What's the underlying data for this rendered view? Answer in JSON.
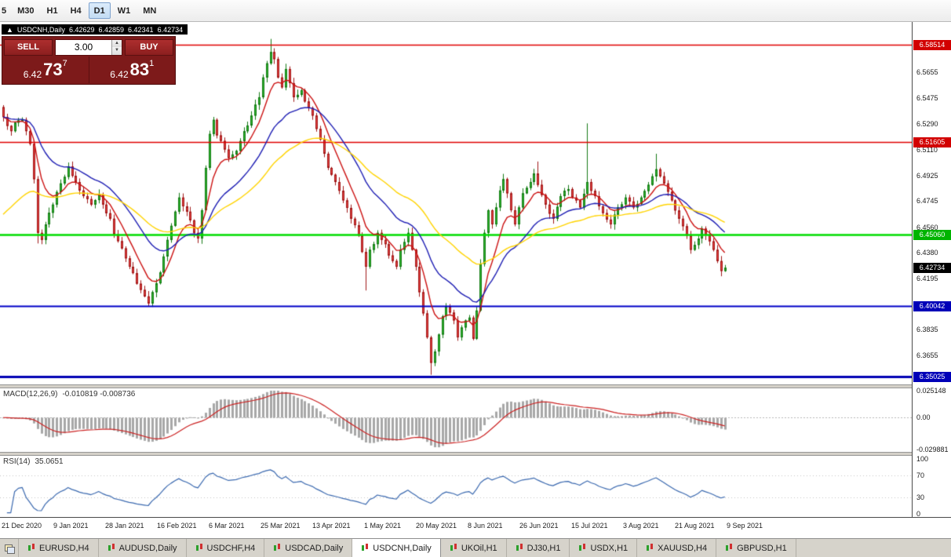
{
  "toolbar": {
    "timeframes": [
      {
        "label": "5",
        "active": false,
        "partial": true
      },
      {
        "label": "M30",
        "active": false
      },
      {
        "label": "H1",
        "active": false
      },
      {
        "label": "H4",
        "active": false
      },
      {
        "label": "D1",
        "active": true
      },
      {
        "label": "W1",
        "active": false
      },
      {
        "label": "MN",
        "active": false
      }
    ]
  },
  "chart": {
    "ohlc_strip": {
      "collapse_icon": "▲",
      "symbol": "USDCNH,Daily",
      "open": "6.42629",
      "high": "6.42859",
      "low": "6.42341",
      "close": "6.42734"
    },
    "trade_panel": {
      "sell_label": "SELL",
      "buy_label": "BUY",
      "lot_size": "3.00",
      "spin_up": "▲",
      "spin_down": "▼",
      "sell_price": {
        "prefix": "6.42",
        "big": "73",
        "sup": "7"
      },
      "buy_price": {
        "prefix": "6.42",
        "big": "83",
        "sup": "1"
      }
    },
    "price_axis": {
      "ticks": [
        {
          "label": "6.5655",
          "value": 6.5655
        },
        {
          "label": "6.5475",
          "value": 6.5475
        },
        {
          "label": "6.5290",
          "value": 6.529
        },
        {
          "label": "6.5110",
          "value": 6.511
        },
        {
          "label": "6.4925",
          "value": 6.4925
        },
        {
          "label": "6.4745",
          "value": 6.4745
        },
        {
          "label": "6.4560",
          "value": 6.456
        },
        {
          "label": "6.4380",
          "value": 6.438
        },
        {
          "label": "6.4195",
          "value": 6.4195
        },
        {
          "label": "6.3835",
          "value": 6.3835
        },
        {
          "label": "6.3655",
          "value": 6.3655
        }
      ],
      "badges": [
        {
          "label": "6.58514",
          "value": 6.58514,
          "color": "#d20000"
        },
        {
          "label": "6.51605",
          "value": 6.51605,
          "color": "#d20000"
        },
        {
          "label": "6.45060",
          "value": 6.4506,
          "color": "#00b400"
        },
        {
          "label": "6.42734",
          "value": 6.42734,
          "color": "#000000",
          "current": true
        },
        {
          "label": "6.40042",
          "value": 6.40042,
          "color": "#0000b8"
        },
        {
          "label": "6.35025",
          "value": 6.35025,
          "color": "#0000b8"
        }
      ]
    }
  },
  "macd": {
    "title": "MACD(12,26,9)",
    "values": "-0.010819 -0.008736",
    "axis": [
      {
        "label": "0.025148",
        "value": 0.025148
      },
      {
        "label": "0.00",
        "value": 0
      },
      {
        "label": "-0.029881",
        "value": -0.029881
      }
    ],
    "scale_range": [
      -0.029881,
      0.025148
    ],
    "histogram_color": "#a8a8a8",
    "signal_color": "#cc2222"
  },
  "rsi": {
    "title": "RSI(14)",
    "value": "35.0651",
    "axis": [
      {
        "label": "100",
        "value": 100
      },
      {
        "label": "70",
        "value": 70
      },
      {
        "label": "30",
        "value": 30
      },
      {
        "label": "0",
        "value": 0
      }
    ],
    "levels": [
      70,
      30
    ],
    "line_color": "#3c6ab0"
  },
  "date_axis": {
    "labels": [
      "21 Dec 2020",
      "9 Jan 2021",
      "28 Jan 2021",
      "16 Feb 2021",
      "6 Mar 2021",
      "25 Mar 2021",
      "13 Apr 2021",
      "1 May 2021",
      "20 May 2021",
      "8 Jun 2021",
      "26 Jun 2021",
      "15 Jul 2021",
      "3 Aug 2021",
      "21 Aug 2021",
      "9 Sep 2021"
    ]
  },
  "tabs": {
    "items": [
      {
        "label": "EURUSD,H4",
        "active": false
      },
      {
        "label": "AUDUSD,Daily",
        "active": false
      },
      {
        "label": "USDCHF,H4",
        "active": false
      },
      {
        "label": "USDCAD,Daily",
        "active": false
      },
      {
        "label": "USDCNH,Daily",
        "active": true
      },
      {
        "label": "UKOil,H1",
        "active": false
      },
      {
        "label": "DJ30,H1",
        "active": false
      },
      {
        "label": "USDX,H1",
        "active": false
      },
      {
        "label": "XAUUSD,H4",
        "active": false
      },
      {
        "label": "GBPUSD,H1",
        "active": false
      }
    ]
  },
  "chart_data": {
    "type": "candlestick",
    "symbol": "USDCNH",
    "timeframe": "Daily",
    "current_bar": {
      "open": 6.42629,
      "high": 6.42859,
      "low": 6.42341,
      "close": 6.42734
    },
    "bar_count": 190,
    "first_open": 6.541,
    "visible_price_range": [
      6.3447,
      6.6013
    ],
    "close_keypoints": [
      [
        0,
        6.534
      ],
      [
        2,
        6.524
      ],
      [
        3,
        6.53
      ],
      [
        5,
        6.532
      ],
      [
        6,
        6.524
      ],
      [
        7,
        6.515
      ],
      [
        8,
        6.49
      ],
      [
        9,
        6.452
      ],
      [
        10,
        6.447
      ],
      [
        11,
        6.458
      ],
      [
        13,
        6.472
      ],
      [
        15,
        6.487
      ],
      [
        17,
        6.499
      ],
      [
        19,
        6.488
      ],
      [
        21,
        6.478
      ],
      [
        23,
        6.472
      ],
      [
        25,
        6.479
      ],
      [
        26,
        6.472
      ],
      [
        28,
        6.462
      ],
      [
        29,
        6.451
      ],
      [
        31,
        6.441
      ],
      [
        33,
        6.428
      ],
      [
        35,
        6.416
      ],
      [
        37,
        6.407
      ],
      [
        38,
        6.402
      ],
      [
        39,
        6.41
      ],
      [
        41,
        6.424
      ],
      [
        43,
        6.447
      ],
      [
        45,
        6.467
      ],
      [
        46,
        6.477
      ],
      [
        48,
        6.467
      ],
      [
        50,
        6.452
      ],
      [
        51,
        6.448
      ],
      [
        52,
        6.468
      ],
      [
        53,
        6.498
      ],
      [
        54,
        6.522
      ],
      [
        55,
        6.532
      ],
      [
        56,
        6.521
      ],
      [
        58,
        6.511
      ],
      [
        59,
        6.505
      ],
      [
        61,
        6.51
      ],
      [
        62,
        6.517
      ],
      [
        64,
        6.528
      ],
      [
        65,
        6.535
      ],
      [
        67,
        6.548
      ],
      [
        68,
        6.562
      ],
      [
        69,
        6.572
      ],
      [
        70,
        6.58
      ],
      [
        71,
        6.575
      ],
      [
        72,
        6.562
      ],
      [
        73,
        6.555
      ],
      [
        74,
        6.568
      ],
      [
        75,
        6.558
      ],
      [
        76,
        6.548
      ],
      [
        78,
        6.553
      ],
      [
        79,
        6.545
      ],
      [
        81,
        6.535
      ],
      [
        83,
        6.518
      ],
      [
        84,
        6.508
      ],
      [
        85,
        6.498
      ],
      [
        87,
        6.488
      ],
      [
        89,
        6.475
      ],
      [
        91,
        6.462
      ],
      [
        93,
        6.45
      ],
      [
        95,
        6.428
      ],
      [
        96,
        6.44
      ],
      [
        97,
        6.444
      ],
      [
        98,
        6.452
      ],
      [
        100,
        6.444
      ],
      [
        101,
        6.436
      ],
      [
        103,
        6.428
      ],
      [
        104,
        6.44
      ],
      [
        106,
        6.452
      ],
      [
        107,
        6.44
      ],
      [
        108,
        6.428
      ],
      [
        109,
        6.41
      ],
      [
        110,
        6.395
      ],
      [
        111,
        6.378
      ],
      [
        112,
        6.36
      ],
      [
        113,
        6.368
      ],
      [
        114,
        6.38
      ],
      [
        115,
        6.393
      ],
      [
        116,
        6.4
      ],
      [
        118,
        6.39
      ],
      [
        119,
        6.378
      ],
      [
        120,
        6.385
      ],
      [
        122,
        6.392
      ],
      [
        123,
        6.377
      ],
      [
        124,
        6.397
      ],
      [
        125,
        6.43
      ],
      [
        126,
        6.452
      ],
      [
        127,
        6.468
      ],
      [
        128,
        6.458
      ],
      [
        129,
        6.47
      ],
      [
        130,
        6.482
      ],
      [
        131,
        6.49
      ],
      [
        132,
        6.48
      ],
      [
        133,
        6.468
      ],
      [
        134,
        6.458
      ],
      [
        135,
        6.47
      ],
      [
        136,
        6.48
      ],
      [
        138,
        6.488
      ],
      [
        139,
        6.494
      ],
      [
        140,
        6.486
      ],
      [
        142,
        6.472
      ],
      [
        144,
        6.462
      ],
      [
        146,
        6.478
      ],
      [
        148,
        6.483
      ],
      [
        149,
        6.477
      ],
      [
        151,
        6.47
      ],
      [
        153,
        6.488
      ],
      [
        155,
        6.478
      ],
      [
        157,
        6.466
      ],
      [
        159,
        6.458
      ],
      [
        161,
        6.47
      ],
      [
        163,
        6.477
      ],
      [
        165,
        6.47
      ],
      [
        167,
        6.477
      ],
      [
        169,
        6.486
      ],
      [
        170,
        6.492
      ],
      [
        171,
        6.497
      ],
      [
        173,
        6.487
      ],
      [
        175,
        6.475
      ],
      [
        177,
        6.462
      ],
      [
        179,
        6.45
      ],
      [
        180,
        6.44
      ],
      [
        182,
        6.448
      ],
      [
        183,
        6.455
      ],
      [
        185,
        6.446
      ],
      [
        186,
        6.44
      ],
      [
        187,
        6.432
      ],
      [
        188,
        6.425
      ],
      [
        189,
        6.4273
      ]
    ],
    "wick_overrides": {
      "9": {
        "low": 6.4445
      },
      "38": {
        "low": 6.4002
      },
      "70": {
        "high": 6.5893
      },
      "95": {
        "low": 6.4112
      },
      "112": {
        "low": 6.3515
      },
      "140": {
        "high": 6.5025
      },
      "153": {
        "high": 6.5295
      },
      "171": {
        "high": 6.508
      }
    },
    "horizontal_lines": [
      {
        "value": 6.58514,
        "color": "#e00000",
        "width": 1.4
      },
      {
        "value": 6.51605,
        "color": "#e00000",
        "width": 1.4
      },
      {
        "value": 6.4506,
        "color": "#00dd00",
        "width": 2.6
      },
      {
        "value": 6.40042,
        "color": "#0000c8",
        "width": 2
      },
      {
        "value": 6.35025,
        "color": "#0000b4",
        "width": 3
      }
    ],
    "moving_averages": [
      {
        "period": 8,
        "color": "#cc1111",
        "init": null
      },
      {
        "period": 22,
        "color": "#1e1eb4",
        "init": null
      },
      {
        "period": 46,
        "color": "#ffd400",
        "init": 6.462
      }
    ],
    "colors": {
      "up_fill": "#2eb82e",
      "up_stroke": "#157a15",
      "down_fill": "#e84040",
      "down_stroke": "#a01818",
      "background": "#ffffff"
    },
    "indicators": {
      "macd": {
        "fast": 12,
        "slow": 26,
        "signal": 9,
        "display_main": -0.010819,
        "display_signal": -0.008736
      },
      "rsi": {
        "period": 14,
        "display_value": 35.0651
      }
    }
  }
}
